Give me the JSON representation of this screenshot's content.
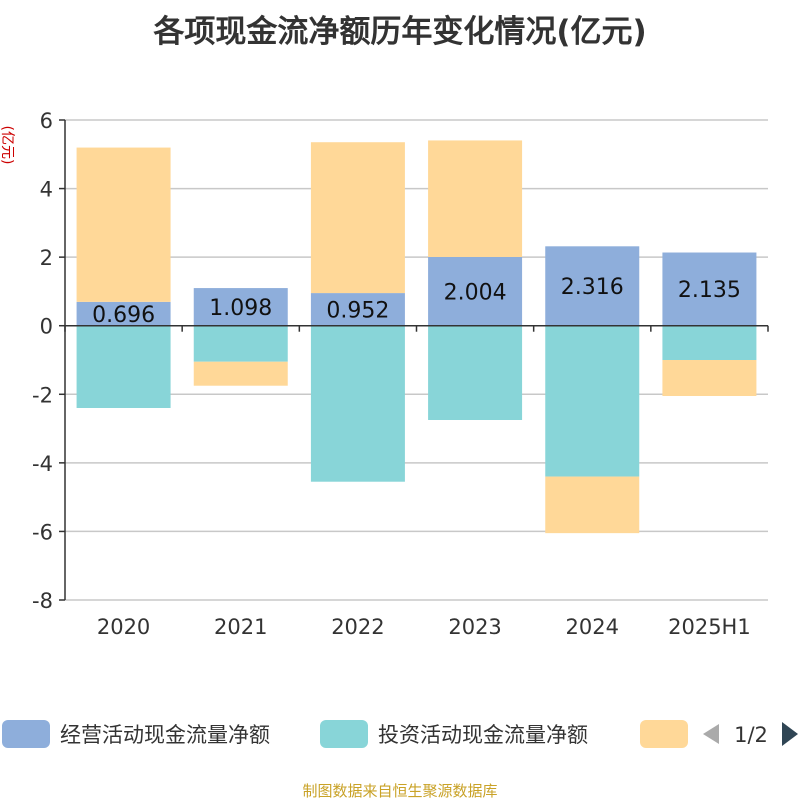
{
  "chart_data": {
    "type": "bar",
    "stacked": true,
    "title": "各项现金流净额历年变化情况(亿元)",
    "ylabel": "(亿元)",
    "xlabel": "",
    "categories": [
      "2020",
      "2021",
      "2022",
      "2023",
      "2024",
      "2025H1"
    ],
    "ylim": [
      -8,
      6
    ],
    "yticks": [
      -8,
      -6,
      -4,
      -2,
      0,
      2,
      4,
      6
    ],
    "grid": true,
    "series": [
      {
        "name": "经营活动现金流量净额",
        "color": "#8eaedb",
        "values": [
          0.696,
          1.098,
          0.952,
          2.004,
          2.316,
          2.135
        ],
        "labels": [
          "0.696",
          "1.098",
          "0.952",
          "2.004",
          "2.316",
          "2.135"
        ]
      },
      {
        "name": "投资活动现金流量净额",
        "color": "#88d5d8",
        "values": [
          -2.4,
          -1.05,
          -4.55,
          -2.75,
          -4.4,
          -1.0
        ]
      },
      {
        "name": "",
        "color": "#ffd898",
        "values": [
          4.5,
          -0.7,
          4.4,
          3.4,
          -1.65,
          -1.05
        ]
      }
    ],
    "legend": {
      "position": "bottom",
      "page": "1/2"
    },
    "source": "制图数据来自恒生聚源数据库"
  }
}
